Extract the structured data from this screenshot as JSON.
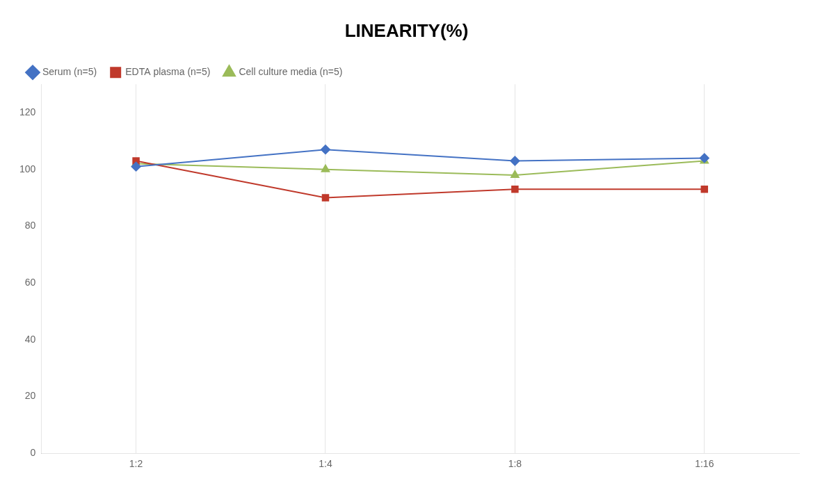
{
  "chart_data": {
    "type": "line",
    "title": "LINEARITY(%)",
    "categories": [
      "1:2",
      "1:4",
      "1:8",
      "1:16"
    ],
    "series": [
      {
        "name": "Serum (n=5)",
        "color": "#4472C4",
        "marker": "diamond",
        "values": [
          101,
          107,
          103,
          104
        ]
      },
      {
        "name": "EDTA plasma (n=5)",
        "color": "#C0392B",
        "marker": "square",
        "values": [
          103,
          90,
          93,
          93
        ]
      },
      {
        "name": "Cell culture media (n=5)",
        "color": "#9BBB59",
        "marker": "triangle",
        "values": [
          102,
          100,
          98,
          103
        ]
      }
    ],
    "ylim": [
      0,
      130
    ],
    "yticks": [
      0,
      20,
      40,
      60,
      80,
      100,
      120
    ],
    "grid": "x",
    "legend": "top"
  }
}
